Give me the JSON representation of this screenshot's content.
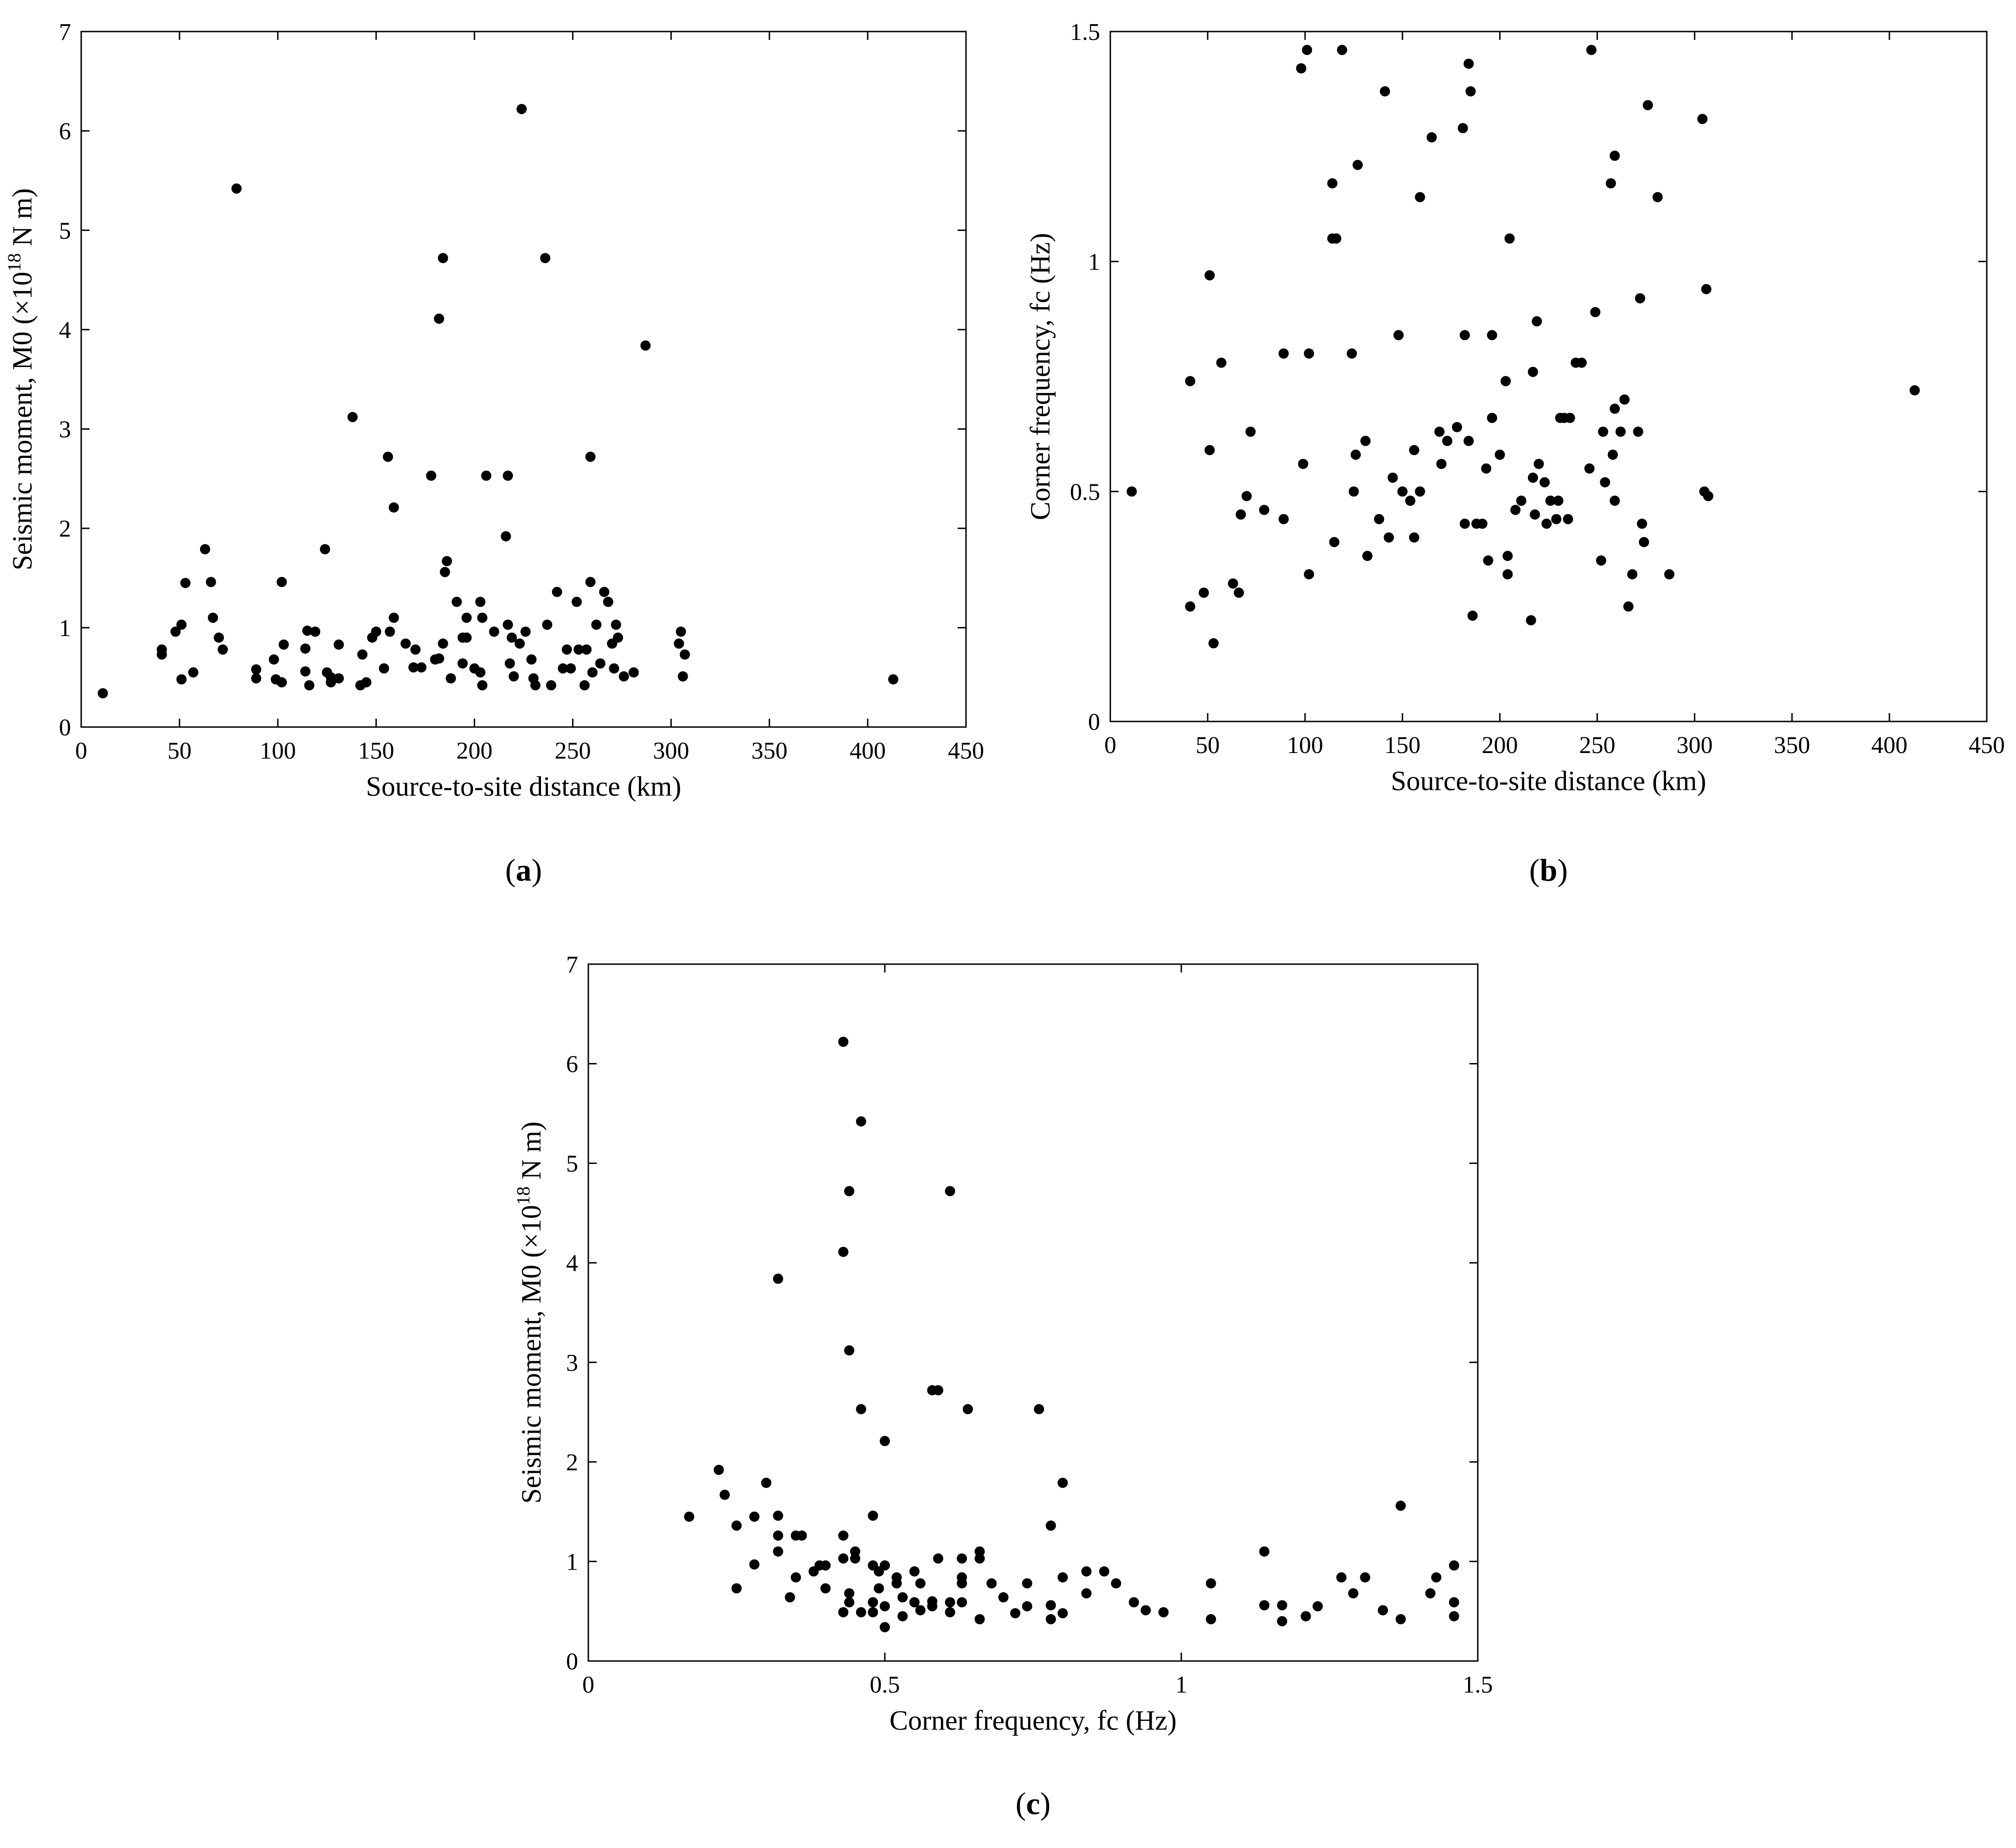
{
  "chart_data": [
    {
      "type": "scatter",
      "panel_label": "a",
      "title": "",
      "xlabel": "Source-to-site distance (km)",
      "ylabel": {
        "prefix": "Seismic moment, M0 (×10",
        "sup": "18",
        "suffix": " N m)"
      },
      "xlim": [
        0,
        450
      ],
      "ylim": [
        0,
        7
      ],
      "xticks": [
        0,
        50,
        100,
        150,
        200,
        250,
        300,
        350,
        400,
        450
      ],
      "yticks": [
        0,
        1,
        2,
        3,
        4,
        5,
        6,
        7
      ],
      "grid": false,
      "marker_color": "#000000",
      "points": [
        [
          11,
          0.34
        ],
        [
          41,
          0.73
        ],
        [
          41,
          0.78
        ],
        [
          48,
          0.96
        ],
        [
          51,
          1.03
        ],
        [
          51,
          0.48
        ],
        [
          53,
          1.45
        ],
        [
          57,
          0.55
        ],
        [
          63,
          1.79
        ],
        [
          66,
          1.46
        ],
        [
          67,
          1.1
        ],
        [
          70,
          0.9
        ],
        [
          72,
          0.78
        ],
        [
          79,
          5.42
        ],
        [
          89,
          0.58
        ],
        [
          89,
          0.49
        ],
        [
          98,
          0.68
        ],
        [
          99,
          0.48
        ],
        [
          102,
          1.46
        ],
        [
          102,
          0.45
        ],
        [
          103,
          0.83
        ],
        [
          114,
          0.56
        ],
        [
          114,
          0.79
        ],
        [
          115,
          0.97
        ],
        [
          116,
          0.42
        ],
        [
          119,
          0.96
        ],
        [
          124,
          1.79
        ],
        [
          125,
          0.55
        ],
        [
          127,
          0.45
        ],
        [
          127,
          0.5
        ],
        [
          131,
          0.83
        ],
        [
          131,
          0.49
        ],
        [
          138,
          3.12
        ],
        [
          142,
          0.42
        ],
        [
          143,
          0.73
        ],
        [
          145,
          0.45
        ],
        [
          148,
          0.9
        ],
        [
          150,
          0.96
        ],
        [
          154,
          0.59
        ],
        [
          156,
          2.72
        ],
        [
          157,
          0.96
        ],
        [
          159,
          2.21
        ],
        [
          159,
          1.1
        ],
        [
          165,
          0.84
        ],
        [
          169,
          0.6
        ],
        [
          170,
          0.78
        ],
        [
          173,
          0.6
        ],
        [
          178,
          2.53
        ],
        [
          180,
          0.68
        ],
        [
          182,
          4.11
        ],
        [
          182,
          0.69
        ],
        [
          184,
          4.72
        ],
        [
          184,
          0.84
        ],
        [
          185,
          1.56
        ],
        [
          186,
          1.67
        ],
        [
          188,
          0.49
        ],
        [
          191,
          1.26
        ],
        [
          194,
          0.64
        ],
        [
          194,
          0.9
        ],
        [
          196,
          1.1
        ],
        [
          196,
          0.9
        ],
        [
          200,
          0.59
        ],
        [
          203,
          1.26
        ],
        [
          203,
          0.55
        ],
        [
          204,
          1.1
        ],
        [
          204,
          0.42
        ],
        [
          206,
          2.53
        ],
        [
          210,
          0.96
        ],
        [
          216,
          1.92
        ],
        [
          217,
          2.53
        ],
        [
          217,
          1.03
        ],
        [
          218,
          0.64
        ],
        [
          219,
          0.9
        ],
        [
          220,
          0.51
        ],
        [
          223,
          0.84
        ],
        [
          224,
          6.22
        ],
        [
          226,
          0.96
        ],
        [
          229,
          0.68
        ],
        [
          230,
          0.49
        ],
        [
          231,
          0.42
        ],
        [
          236,
          4.72
        ],
        [
          237,
          1.03
        ],
        [
          239,
          0.42
        ],
        [
          242,
          1.36
        ],
        [
          245,
          0.59
        ],
        [
          247,
          0.78
        ],
        [
          249,
          0.59
        ],
        [
          252,
          1.26
        ],
        [
          253,
          0.78
        ],
        [
          256,
          0.42
        ],
        [
          257,
          0.78
        ],
        [
          259,
          2.72
        ],
        [
          259,
          1.46
        ],
        [
          260,
          0.55
        ],
        [
          262,
          1.03
        ],
        [
          264,
          0.64
        ],
        [
          266,
          1.36
        ],
        [
          268,
          1.26
        ],
        [
          270,
          0.84
        ],
        [
          271,
          0.59
        ],
        [
          272,
          1.03
        ],
        [
          273,
          0.9
        ],
        [
          276,
          0.51
        ],
        [
          281,
          0.55
        ],
        [
          287,
          3.84
        ],
        [
          304,
          0.84
        ],
        [
          305,
          0.96
        ],
        [
          306,
          0.51
        ],
        [
          307,
          0.73
        ],
        [
          413,
          0.48
        ]
      ]
    },
    {
      "type": "scatter",
      "panel_label": "b",
      "title": "",
      "xlabel": "Source-to-site distance (km)",
      "ylabel": {
        "prefix": "Corner frequency, fc (Hz)",
        "sup": "",
        "suffix": ""
      },
      "xlim": [
        0,
        450
      ],
      "ylim": [
        0,
        1.5
      ],
      "xticks": [
        0,
        50,
        100,
        150,
        200,
        250,
        300,
        350,
        400,
        450
      ],
      "yticks": [
        0,
        0.5,
        1,
        1.5
      ],
      "grid": false,
      "marker_color": "#000000",
      "points": [
        [
          11,
          0.5
        ],
        [
          41,
          0.25
        ],
        [
          41,
          0.74
        ],
        [
          48,
          0.28
        ],
        [
          51,
          0.97
        ],
        [
          51,
          0.59
        ],
        [
          53,
          0.17
        ],
        [
          57,
          0.78
        ],
        [
          63,
          0.3
        ],
        [
          66,
          0.28
        ],
        [
          67,
          0.45
        ],
        [
          70,
          0.49
        ],
        [
          72,
          0.63
        ],
        [
          79,
          0.46
        ],
        [
          89,
          0.8
        ],
        [
          89,
          0.44
        ],
        [
          98,
          1.42
        ],
        [
          99,
          0.56
        ],
        [
          101,
          1.46
        ],
        [
          102,
          0.8
        ],
        [
          102,
          0.32
        ],
        [
          114,
          1.17
        ],
        [
          114,
          1.05
        ],
        [
          115,
          0.39
        ],
        [
          116,
          1.05
        ],
        [
          119,
          1.46
        ],
        [
          124,
          0.8
        ],
        [
          125,
          0.5
        ],
        [
          126,
          0.58
        ],
        [
          127,
          1.21
        ],
        [
          131,
          0.61
        ],
        [
          132,
          0.36
        ],
        [
          138,
          0.44
        ],
        [
          141,
          1.37
        ],
        [
          143,
          0.4
        ],
        [
          145,
          0.53
        ],
        [
          148,
          0.84
        ],
        [
          150,
          0.5
        ],
        [
          154,
          0.48
        ],
        [
          156,
          0.59
        ],
        [
          156,
          0.4
        ],
        [
          159,
          1.14
        ],
        [
          159,
          0.5
        ],
        [
          165,
          1.27
        ],
        [
          169,
          0.63
        ],
        [
          170,
          0.56
        ],
        [
          173,
          0.61
        ],
        [
          178,
          0.64
        ],
        [
          181,
          1.29
        ],
        [
          182,
          0.43
        ],
        [
          182,
          0.84
        ],
        [
          184,
          1.43
        ],
        [
          184,
          0.61
        ],
        [
          185,
          1.37
        ],
        [
          186,
          0.23
        ],
        [
          188,
          0.43
        ],
        [
          191,
          0.43
        ],
        [
          193,
          0.55
        ],
        [
          194,
          0.35
        ],
        [
          196,
          0.66
        ],
        [
          196,
          0.84
        ],
        [
          200,
          0.58
        ],
        [
          203,
          0.74
        ],
        [
          204,
          0.32
        ],
        [
          204,
          0.36
        ],
        [
          205,
          1.05
        ],
        [
          208,
          0.46
        ],
        [
          211,
          0.48
        ],
        [
          216,
          0.22
        ],
        [
          217,
          0.76
        ],
        [
          217,
          0.53
        ],
        [
          218,
          0.45
        ],
        [
          219,
          0.87
        ],
        [
          220,
          0.56
        ],
        [
          223,
          0.52
        ],
        [
          224,
          0.43
        ],
        [
          226,
          0.48
        ],
        [
          229,
          0.44
        ],
        [
          230,
          0.48
        ],
        [
          231,
          0.66
        ],
        [
          233,
          0.66
        ],
        [
          235,
          0.44
        ],
        [
          236,
          0.66
        ],
        [
          239,
          0.78
        ],
        [
          242,
          0.78
        ],
        [
          246,
          0.55
        ],
        [
          247,
          1.46
        ],
        [
          249,
          0.89
        ],
        [
          252,
          0.35
        ],
        [
          253,
          0.63
        ],
        [
          254,
          0.52
        ],
        [
          257,
          1.17
        ],
        [
          258,
          0.58
        ],
        [
          259,
          1.23
        ],
        [
          259,
          0.68
        ],
        [
          259,
          0.48
        ],
        [
          262,
          0.63
        ],
        [
          264,
          0.7
        ],
        [
          266,
          0.25
        ],
        [
          268,
          0.32
        ],
        [
          271,
          0.63
        ],
        [
          272,
          0.92
        ],
        [
          273,
          0.43
        ],
        [
          274,
          0.39
        ],
        [
          276,
          1.34
        ],
        [
          281,
          1.14
        ],
        [
          287,
          0.32
        ],
        [
          304,
          1.31
        ],
        [
          305,
          0.5
        ],
        [
          306,
          0.94
        ],
        [
          307,
          0.49
        ],
        [
          413,
          0.72
        ]
      ]
    },
    {
      "type": "scatter",
      "panel_label": "c",
      "title": "",
      "xlabel": "Corner frequency, fc (Hz)",
      "ylabel": {
        "prefix": "Seismic moment, M0 (×10",
        "sup": "18",
        "suffix": " N m)"
      },
      "xlim": [
        0,
        1.5
      ],
      "ylim": [
        0,
        7
      ],
      "xticks": [
        0,
        0.5,
        1,
        1.5
      ],
      "yticks": [
        0,
        1,
        2,
        3,
        4,
        5,
        6,
        7
      ],
      "grid": false,
      "marker_color": "#000000",
      "points": [
        [
          0.17,
          1.45
        ],
        [
          0.22,
          1.92
        ],
        [
          0.23,
          1.67
        ],
        [
          0.25,
          1.36
        ],
        [
          0.25,
          0.73
        ],
        [
          0.28,
          0.97
        ],
        [
          0.28,
          1.45
        ],
        [
          0.3,
          1.79
        ],
        [
          0.32,
          3.84
        ],
        [
          0.32,
          1.46
        ],
        [
          0.32,
          1.26
        ],
        [
          0.32,
          1.1
        ],
        [
          0.34,
          0.64
        ],
        [
          0.35,
          1.26
        ],
        [
          0.35,
          0.84
        ],
        [
          0.36,
          1.26
        ],
        [
          0.38,
          0.9
        ],
        [
          0.39,
          0.96
        ],
        [
          0.4,
          0.96
        ],
        [
          0.4,
          0.73
        ],
        [
          0.43,
          6.22
        ],
        [
          0.43,
          4.11
        ],
        [
          0.43,
          1.26
        ],
        [
          0.43,
          1.03
        ],
        [
          0.43,
          0.49
        ],
        [
          0.44,
          4.72
        ],
        [
          0.44,
          3.12
        ],
        [
          0.44,
          0.68
        ],
        [
          0.44,
          0.59
        ],
        [
          0.45,
          1.1
        ],
        [
          0.45,
          1.03
        ],
        [
          0.46,
          5.42
        ],
        [
          0.46,
          2.53
        ],
        [
          0.46,
          0.49
        ],
        [
          0.48,
          1.46
        ],
        [
          0.48,
          0.96
        ],
        [
          0.48,
          0.59
        ],
        [
          0.48,
          0.49
        ],
        [
          0.49,
          0.9
        ],
        [
          0.49,
          0.73
        ],
        [
          0.5,
          2.21
        ],
        [
          0.5,
          0.96
        ],
        [
          0.5,
          0.55
        ],
        [
          0.5,
          0.34
        ],
        [
          0.52,
          0.84
        ],
        [
          0.52,
          0.78
        ],
        [
          0.53,
          0.64
        ],
        [
          0.53,
          0.45
        ],
        [
          0.55,
          0.9
        ],
        [
          0.55,
          0.59
        ],
        [
          0.56,
          0.78
        ],
        [
          0.56,
          0.51
        ],
        [
          0.58,
          2.72
        ],
        [
          0.58,
          0.6
        ],
        [
          0.58,
          0.55
        ],
        [
          0.59,
          2.72
        ],
        [
          0.59,
          1.03
        ],
        [
          0.61,
          4.72
        ],
        [
          0.61,
          0.59
        ],
        [
          0.61,
          0.49
        ],
        [
          0.63,
          1.03
        ],
        [
          0.63,
          0.84
        ],
        [
          0.63,
          0.78
        ],
        [
          0.63,
          0.59
        ],
        [
          0.64,
          2.53
        ],
        [
          0.66,
          1.1
        ],
        [
          0.66,
          1.03
        ],
        [
          0.66,
          0.42
        ],
        [
          0.68,
          0.78
        ],
        [
          0.7,
          0.64
        ],
        [
          0.72,
          0.48
        ],
        [
          0.74,
          0.78
        ],
        [
          0.74,
          0.55
        ],
        [
          0.76,
          2.53
        ],
        [
          0.78,
          1.36
        ],
        [
          0.78,
          0.56
        ],
        [
          0.78,
          0.42
        ],
        [
          0.8,
          1.79
        ],
        [
          0.8,
          0.84
        ],
        [
          0.8,
          0.48
        ],
        [
          0.84,
          0.9
        ],
        [
          0.84,
          0.68
        ],
        [
          0.87,
          0.9
        ],
        [
          0.89,
          0.78
        ],
        [
          0.92,
          0.59
        ],
        [
          0.94,
          0.51
        ],
        [
          0.97,
          0.49
        ],
        [
          1.05,
          0.78
        ],
        [
          1.05,
          0.42
        ],
        [
          1.14,
          1.1
        ],
        [
          1.14,
          0.56
        ],
        [
          1.17,
          0.56
        ],
        [
          1.17,
          0.4
        ],
        [
          1.21,
          0.45
        ],
        [
          1.23,
          0.55
        ],
        [
          1.27,
          0.84
        ],
        [
          1.29,
          0.68
        ],
        [
          1.31,
          0.84
        ],
        [
          1.34,
          0.51
        ],
        [
          1.37,
          1.56
        ],
        [
          1.37,
          0.42
        ],
        [
          1.42,
          0.68
        ],
        [
          1.43,
          0.84
        ],
        [
          1.46,
          0.96
        ],
        [
          1.46,
          0.59
        ],
        [
          1.46,
          0.45
        ]
      ]
    }
  ]
}
